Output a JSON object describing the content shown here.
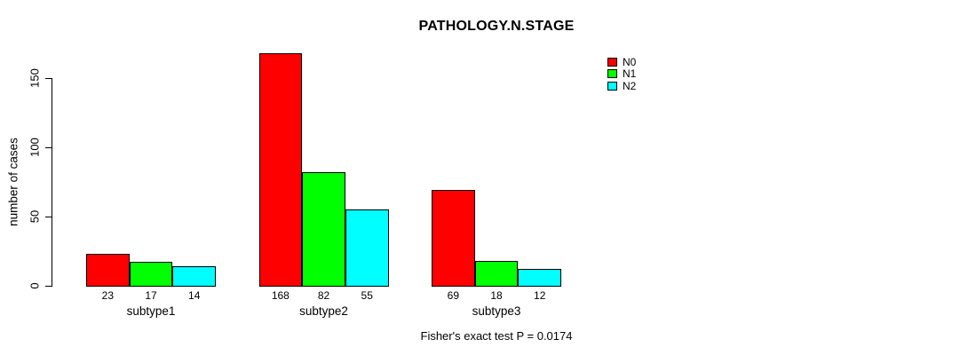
{
  "chart_data": {
    "type": "bar",
    "title": "PATHOLOGY.N.STAGE",
    "ylabel": "number of cases",
    "xlabel": "",
    "categories": [
      "subtype1",
      "subtype2",
      "subtype3"
    ],
    "series": [
      {
        "name": "N0",
        "color": "#ff0000",
        "values": [
          23,
          168,
          69
        ]
      },
      {
        "name": "N1",
        "color": "#00ff00",
        "values": [
          17,
          82,
          18
        ]
      },
      {
        "name": "N2",
        "color": "#00ffff",
        "values": [
          14,
          55,
          12
        ]
      }
    ],
    "bar_value_labels": [
      [
        "23",
        "17",
        "14"
      ],
      [
        "168",
        "82",
        "55"
      ],
      [
        "69",
        "18",
        "12"
      ]
    ],
    "yticks": [
      0,
      50,
      100,
      150
    ],
    "ylim": [
      0,
      150
    ],
    "grid": "off",
    "legend_position": "top-right",
    "footnote": "Fisher's exact test P = 0.0174",
    "axis_color": "#000000",
    "background_color": "#ffffff"
  }
}
